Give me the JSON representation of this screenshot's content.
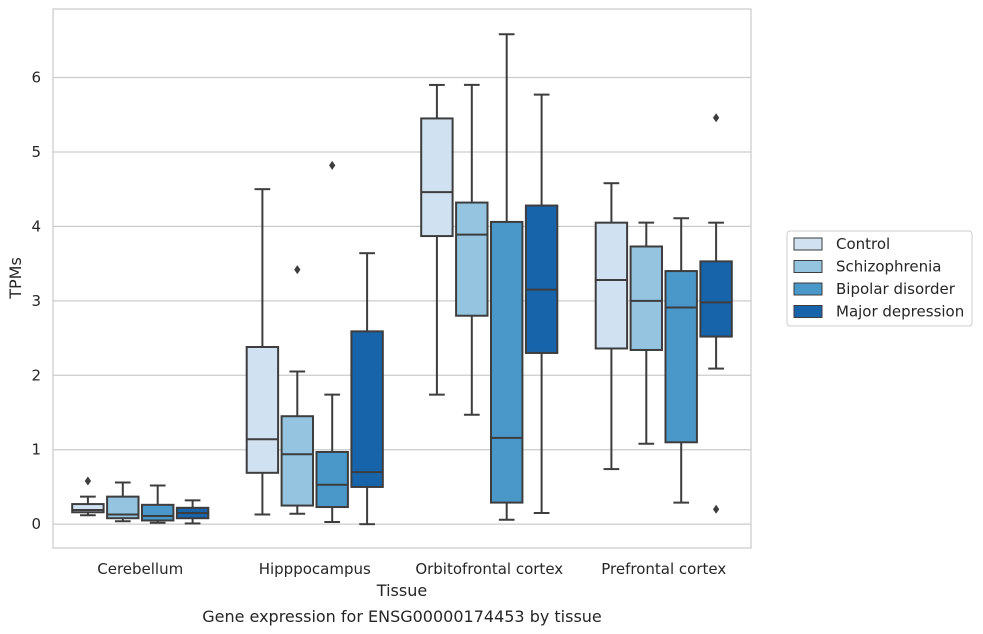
{
  "chart_data": {
    "type": "box",
    "caption": "Gene expression for ENSG00000174453 by tissue",
    "xlabel": "Tissue",
    "ylabel": "TPMs",
    "ylim": [
      -0.32,
      6.92
    ],
    "yticks": [
      0,
      1,
      2,
      3,
      4,
      5,
      6
    ],
    "grid": true,
    "legend_position": "right",
    "categories": [
      "Cerebellum",
      "Hipppocampus",
      "Orbitofrontal cortex",
      "Prefrontal cortex"
    ],
    "series": [
      {
        "name": "Control",
        "color": "#d0e1f2",
        "boxes": [
          {
            "whisker_low": 0.12,
            "q1": 0.16,
            "median": 0.19,
            "q3": 0.27,
            "whisker_high": 0.37,
            "outliers": [
              0.58
            ]
          },
          {
            "whisker_low": 0.13,
            "q1": 0.69,
            "median": 1.14,
            "q3": 2.38,
            "whisker_high": 4.5,
            "outliers": []
          },
          {
            "whisker_low": 1.74,
            "q1": 3.87,
            "median": 4.46,
            "q3": 5.45,
            "whisker_high": 5.9,
            "outliers": []
          },
          {
            "whisker_low": 0.74,
            "q1": 2.36,
            "median": 3.28,
            "q3": 4.05,
            "whisker_high": 4.58,
            "outliers": []
          }
        ]
      },
      {
        "name": "Schizophrenia",
        "color": "#94c4df",
        "boxes": [
          {
            "whisker_low": 0.04,
            "q1": 0.08,
            "median": 0.13,
            "q3": 0.37,
            "whisker_high": 0.56,
            "outliers": []
          },
          {
            "whisker_low": 0.14,
            "q1": 0.25,
            "median": 0.94,
            "q3": 1.45,
            "whisker_high": 2.05,
            "outliers": [
              3.42
            ]
          },
          {
            "whisker_low": 1.47,
            "q1": 2.8,
            "median": 3.89,
            "q3": 4.32,
            "whisker_high": 5.9,
            "outliers": []
          },
          {
            "whisker_low": 1.08,
            "q1": 2.34,
            "median": 3.0,
            "q3": 3.73,
            "whisker_high": 4.05,
            "outliers": []
          }
        ]
      },
      {
        "name": "Bipolar disorder",
        "color": "#4a98c9",
        "boxes": [
          {
            "whisker_low": 0.02,
            "q1": 0.05,
            "median": 0.11,
            "q3": 0.26,
            "whisker_high": 0.52,
            "outliers": []
          },
          {
            "whisker_low": 0.03,
            "q1": 0.23,
            "median": 0.53,
            "q3": 0.97,
            "whisker_high": 1.74,
            "outliers": [
              4.82
            ]
          },
          {
            "whisker_low": 0.06,
            "q1": 0.29,
            "median": 1.16,
            "q3": 4.06,
            "whisker_high": 6.58,
            "outliers": []
          },
          {
            "whisker_low": 0.29,
            "q1": 1.1,
            "median": 2.91,
            "q3": 3.4,
            "whisker_high": 4.11,
            "outliers": []
          }
        ]
      },
      {
        "name": "Major depression",
        "color": "#1764ab",
        "boxes": [
          {
            "whisker_low": 0.01,
            "q1": 0.08,
            "median": 0.15,
            "q3": 0.22,
            "whisker_high": 0.32,
            "outliers": []
          },
          {
            "whisker_low": 0.0,
            "q1": 0.5,
            "median": 0.7,
            "q3": 2.59,
            "whisker_high": 3.64,
            "outliers": []
          },
          {
            "whisker_low": 0.15,
            "q1": 2.3,
            "median": 3.15,
            "q3": 4.28,
            "whisker_high": 5.77,
            "outliers": []
          },
          {
            "whisker_low": 2.09,
            "q1": 2.52,
            "median": 2.98,
            "q3": 3.53,
            "whisker_high": 4.05,
            "outliers": [
              5.46,
              0.2
            ]
          }
        ]
      }
    ]
  }
}
